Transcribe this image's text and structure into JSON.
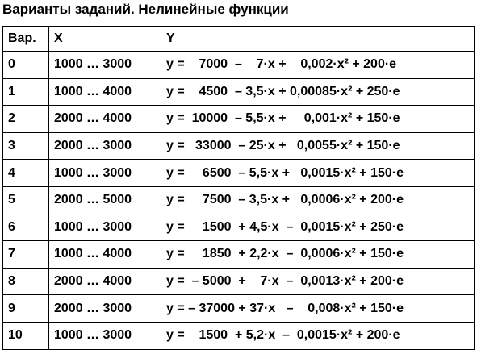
{
  "header": {
    "title": "Варианты заданий. Нелинейные функции"
  },
  "table": {
    "columns": [
      "Вар.",
      "X",
      "Y"
    ],
    "rows": [
      [
        "0",
        "1000 … 3000",
        "y =    7000  –    7·x +    0,002·x² + 200·e"
      ],
      [
        "1",
        "1000 … 4000",
        "y =    4500  – 3,5·x + 0,00085·x² + 250·e"
      ],
      [
        "2",
        "2000 … 4000",
        "y =  10000  – 5,5·x +     0,001·x² + 150·e"
      ],
      [
        "3",
        "2000 … 3000",
        "y =   33000  – 25·x +   0,0055·x² + 150·e"
      ],
      [
        "4",
        "1000 … 3000",
        "y =     6500  – 5,5·x +   0,0015·x² + 150·e"
      ],
      [
        "5",
        "2000 … 5000",
        "y =     7500  – 3,5·x +   0,0006·x² + 200·e"
      ],
      [
        "6",
        "1000 … 3000",
        "y =     1500  + 4,5·x  –  0,0015·x² + 250·e"
      ],
      [
        "7",
        "1000 … 4000",
        "y =     1850  + 2,2·x  –  0,0006·x² + 150·e"
      ],
      [
        "8",
        "2000 … 4000",
        "y =  – 5000  +    7·x  –  0,0013·x² + 200·e"
      ],
      [
        "9",
        "2000 … 3000",
        "y = – 37000 + 37·x   –    0,008·x² + 150·e"
      ],
      [
        "10",
        "1000 … 3000",
        "y =    1500  + 5,2·x  –  0,0015·x² + 200·e"
      ]
    ]
  }
}
